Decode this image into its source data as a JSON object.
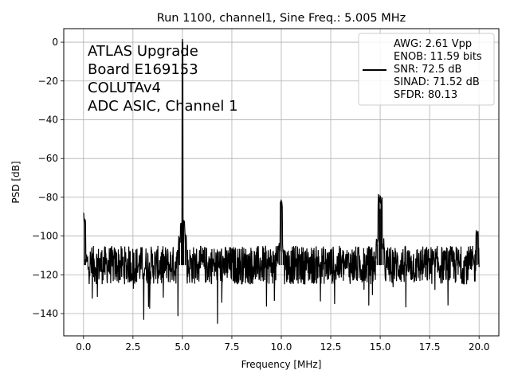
{
  "chart_data": {
    "type": "line",
    "title": "Run 1100, channel1, Sine Freq.: 5.005 MHz",
    "xlabel": "Frequency [MHz]",
    "ylabel": "PSD [dB]",
    "xlim": [
      -1.0,
      21.0
    ],
    "ylim": [
      -151.5,
      7.0
    ],
    "grid": true,
    "legend_placement": "top-right",
    "x_ticks": [
      0.0,
      2.5,
      5.0,
      7.5,
      10.0,
      12.5,
      15.0,
      17.5,
      20.0
    ],
    "x_tick_labels": [
      "0.0",
      "2.5",
      "5.0",
      "7.5",
      "10.0",
      "12.5",
      "15.0",
      "17.5",
      "20.0"
    ],
    "y_ticks": [
      0,
      -20,
      -40,
      -60,
      -80,
      -100,
      -120,
      -140
    ],
    "y_tick_labels": [
      "0",
      "−20",
      "−40",
      "−60",
      "−80",
      "−100",
      "−120",
      "−140"
    ],
    "annotation_lines": [
      "ATLAS Upgrade",
      " Board E169153",
      "COLUTAv4",
      "ADC ASIC, Channel 1"
    ],
    "legend_lines": [
      "AWG: 2.61 Vpp",
      "ENOB: 11.59 bits",
      "SNR: 72.5 dB",
      "SINAD: 71.52 dB",
      "SFDR: 80.13"
    ],
    "series": [
      {
        "color": "#000000",
        "noise_floor": -115,
        "noise_band": [
          -125,
          -105
        ],
        "x": [
          0.0,
          0.05,
          0.1,
          4.85,
          4.95,
          5.005,
          5.06,
          5.15,
          9.9,
          10.0,
          10.1,
          14.85,
          14.95,
          15.0,
          15.05,
          15.15,
          19.9,
          20.0
        ],
        "y": [
          -115,
          -91,
          -112,
          -102,
          -94,
          0,
          -93,
          -101,
          -106,
          -83,
          -107,
          -104,
          -81,
          -86,
          -82,
          -104,
          -98,
          -116
        ]
      }
    ]
  }
}
